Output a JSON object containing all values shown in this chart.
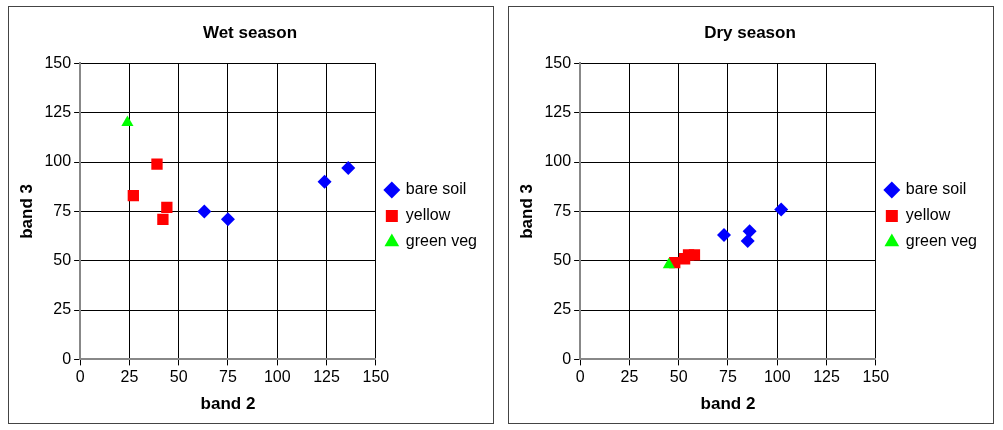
{
  "chart_data": [
    {
      "type": "scatter",
      "title": "Wet season",
      "xlabel": "band 2",
      "ylabel": "band 3",
      "xlim": [
        0,
        150
      ],
      "xticks": [
        0,
        25,
        50,
        75,
        100,
        125,
        150
      ],
      "ylim": [
        0,
        150
      ],
      "yticks": [
        0,
        25,
        50,
        75,
        100,
        125,
        150
      ],
      "grid": true,
      "legend": "right",
      "series": [
        {
          "name": "bare soil",
          "color": "#0000ff",
          "marker": "diamond",
          "x": [
            63,
            75,
            124,
            136
          ],
          "values": [
            75,
            71,
            90,
            97
          ]
        },
        {
          "name": "yellow",
          "color": "#ff0000",
          "marker": "square",
          "x": [
            27,
            39,
            42,
            44
          ],
          "values": [
            83,
            99,
            71,
            77
          ]
        },
        {
          "name": "green veg",
          "color": "#00ff00",
          "marker": "triangle",
          "x": [
            24
          ],
          "values": [
            120
          ]
        }
      ]
    },
    {
      "type": "scatter",
      "title": "Dry season",
      "xlabel": "band 2",
      "ylabel": "band 3",
      "xlim": [
        0,
        150
      ],
      "xticks": [
        0,
        25,
        50,
        75,
        100,
        125,
        150
      ],
      "ylim": [
        0,
        150
      ],
      "yticks": [
        0,
        25,
        50,
        75,
        100,
        125,
        150
      ],
      "grid": true,
      "legend": "right",
      "series": [
        {
          "name": "bare soil",
          "color": "#0000ff",
          "marker": "diamond",
          "x": [
            73,
            85,
            86,
            102
          ],
          "values": [
            63,
            60,
            65,
            76
          ]
        },
        {
          "name": "yellow",
          "color": "#ff0000",
          "marker": "square",
          "x": [
            48,
            53,
            55,
            58
          ],
          "values": [
            49,
            51,
            53,
            53
          ]
        },
        {
          "name": "green veg",
          "color": "#00ff00",
          "marker": "triangle",
          "x": [
            45
          ],
          "values": [
            48
          ]
        }
      ]
    }
  ]
}
